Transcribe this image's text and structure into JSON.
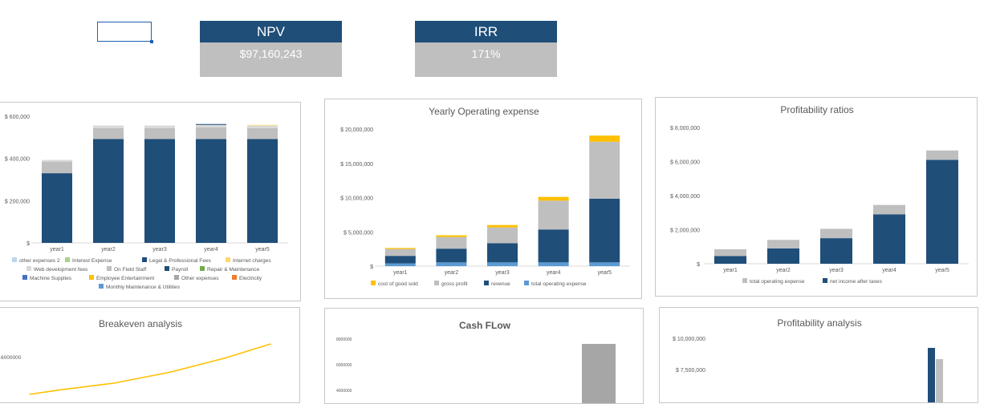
{
  "kpis": {
    "npv": {
      "label": "NPV",
      "value": "$97,160,243"
    },
    "irr": {
      "label": "IRR",
      "value": "171%"
    }
  },
  "colors": {
    "navy": "#1f4e79",
    "gray": "#bfbfbf",
    "yellow": "#ffc000",
    "lightblue": "#5b9bd5",
    "palegray": "#a6a6a6",
    "green": "#70ad47",
    "orange": "#ed7d31"
  },
  "chart_data": [
    {
      "id": "expenses",
      "type": "bar",
      "title": "",
      "categories": [
        "year1",
        "year2",
        "year3",
        "year4",
        "year5"
      ],
      "yticks": [
        "$ 600,000",
        "$ 400,000",
        "$ 200,000",
        "$"
      ],
      "ylim": [
        0,
        600000
      ],
      "series": [
        {
          "name": "Legal & Professional Fees",
          "color": "#1f4e79",
          "values": [
            330000,
            492000,
            492000,
            492000,
            492000
          ]
        },
        {
          "name": "On Field Staff",
          "color": "#bfbfbf",
          "values": [
            55000,
            52000,
            52000,
            55000,
            52000
          ]
        },
        {
          "name": "Web development fees",
          "color": "#d9d9d9",
          "values": [
            8000,
            12000,
            12000,
            12000,
            12000
          ]
        },
        {
          "name": "Internet charges",
          "color": "#ffd966",
          "values": [
            0,
            0,
            0,
            0,
            3000
          ]
        },
        {
          "name": "Payroll",
          "color": "#1f4e79",
          "values": [
            0,
            0,
            0,
            4000,
            0
          ]
        }
      ],
      "legend": [
        {
          "name": "other expenses 2",
          "color": "#bdd7ee"
        },
        {
          "name": "Interest Expense",
          "color": "#a9d18e"
        },
        {
          "name": "Legal & Professional Fees",
          "color": "#1f4e79"
        },
        {
          "name": "Internet charges",
          "color": "#ffd966"
        },
        {
          "name": "Web development fees",
          "color": "#d9d9d9"
        },
        {
          "name": "On Field Staff",
          "color": "#bfbfbf"
        },
        {
          "name": "Payroll",
          "color": "#1f4e79"
        },
        {
          "name": "Repair & Maintenance",
          "color": "#70ad47"
        },
        {
          "name": "Machine Supplies",
          "color": "#4472c4"
        },
        {
          "name": "Employee Entertainment",
          "color": "#ffc000"
        },
        {
          "name": "Other expenses",
          "color": "#a6a6a6"
        },
        {
          "name": "Electricity",
          "color": "#ed7d31"
        },
        {
          "name": "Monthly Maintenance & Utilities",
          "color": "#5b9bd5"
        }
      ]
    },
    {
      "id": "opex",
      "type": "bar",
      "title": "Yearly Operating expense",
      "categories": [
        "year1",
        "year2",
        "year3",
        "year4",
        "year5"
      ],
      "yticks": [
        "$ 20,000,000",
        "$ 15,000,000",
        "$ 10,000,000",
        "$ 5,000,000",
        "$"
      ],
      "ylim": [
        0,
        20000000
      ],
      "series": [
        {
          "name": "total operating expense",
          "color": "#5b9bd5",
          "values": [
            400000,
            550000,
            550000,
            550000,
            550000
          ]
        },
        {
          "name": "revenue",
          "color": "#1f4e79",
          "values": [
            1100000,
            2000000,
            2800000,
            4800000,
            9300000
          ]
        },
        {
          "name": "gross profit",
          "color": "#bfbfbf",
          "values": [
            1000000,
            1700000,
            2300000,
            4200000,
            8300000
          ]
        },
        {
          "name": "cost of good sold",
          "color": "#ffc000",
          "values": [
            150000,
            250000,
            350000,
            550000,
            900000
          ]
        }
      ],
      "legend": [
        {
          "name": "cost of good sold",
          "color": "#ffc000"
        },
        {
          "name": "gross profit",
          "color": "#bfbfbf"
        },
        {
          "name": "revenue",
          "color": "#1f4e79"
        },
        {
          "name": "total operating expense",
          "color": "#5b9bd5"
        }
      ]
    },
    {
      "id": "ratios",
      "type": "bar",
      "title": "Profitability ratios",
      "categories": [
        "year1",
        "year2",
        "year3",
        "year4",
        "year5"
      ],
      "yticks": [
        "$ 8,000,000",
        "$ 6,000,000",
        "$ 4,000,000",
        "$ 2,000,000",
        "$"
      ],
      "ylim": [
        0,
        8000000
      ],
      "series": [
        {
          "name": "net income after taxes",
          "color": "#1f4e79",
          "values": [
            450000,
            900000,
            1500000,
            2900000,
            6100000
          ]
        },
        {
          "name": "total operating expense",
          "color": "#bfbfbf",
          "values": [
            400000,
            500000,
            550000,
            550000,
            550000
          ]
        }
      ],
      "legend": [
        {
          "name": "total operating expense",
          "color": "#bfbfbf"
        },
        {
          "name": "net income after taxes",
          "color": "#1f4e79"
        }
      ]
    },
    {
      "id": "breakeven",
      "type": "line",
      "title": "Breakeven analysis",
      "yticks": [
        "6000000"
      ],
      "series": [
        {
          "name": "",
          "color": "#ffc000",
          "points": [
            [
              0.1,
              0.0
            ],
            [
              0.2,
              0.08
            ],
            [
              0.38,
              0.2
            ],
            [
              0.57,
              0.4
            ],
            [
              0.75,
              0.65
            ],
            [
              0.9,
              0.9
            ]
          ]
        }
      ]
    },
    {
      "id": "cashflow",
      "type": "bar",
      "title": "Cash FLow",
      "yticks": [
        "8000000",
        "6000000",
        "4000000"
      ],
      "ylim": [
        3000000,
        8500000
      ],
      "series": [
        {
          "name": "",
          "color": "#a6a6a6",
          "values": [
            7800000
          ]
        }
      ]
    },
    {
      "id": "analysis",
      "type": "bar",
      "title": "Profitability analysis",
      "yticks": [
        "$ 10,000,000",
        "$ 7,500,000"
      ],
      "ylim": [
        5000000,
        11000000
      ],
      "series": [
        {
          "name": "",
          "color": "#1f4e79",
          "values": [
            9400000
          ]
        },
        {
          "name": "",
          "color": "#bfbfbf",
          "values": [
            8600000
          ]
        }
      ]
    }
  ]
}
